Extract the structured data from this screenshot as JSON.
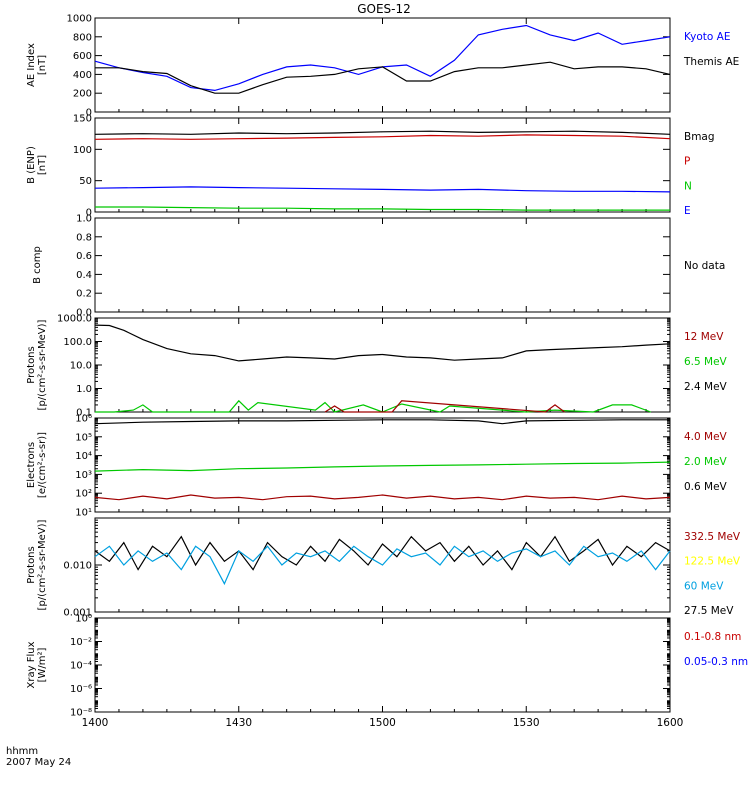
{
  "title": "GOES-12",
  "footer": {
    "line1": "hhmm",
    "line2": "2007 May 24"
  },
  "colors": {
    "black": "#000000",
    "blue": "#0000ff",
    "red": "#c80000",
    "green": "#00c800",
    "cyan": "#00a0e0",
    "yellow": "#ffff00",
    "darkred": "#a00000"
  },
  "chart_data": [
    {
      "id": "ae",
      "type": "line",
      "scale": "linear",
      "ylabel": [
        "AE Index",
        "[nT]"
      ],
      "ylim": [
        0,
        1000
      ],
      "ticks": [
        "0",
        "200",
        "400",
        "600",
        "800",
        "1000"
      ],
      "tick_values": [
        0,
        200,
        400,
        600,
        800,
        1000
      ],
      "legend": [
        {
          "label": "Kyoto AE",
          "color": "blue"
        },
        {
          "label": "Themis AE",
          "color": "black"
        }
      ],
      "series": [
        {
          "name": "Kyoto AE",
          "color": "blue",
          "x": [
            0,
            5,
            10,
            15,
            20,
            25,
            30,
            35,
            40,
            45,
            50,
            55,
            60,
            65,
            70,
            75,
            80,
            85,
            90,
            95,
            100,
            105,
            110,
            115,
            120
          ],
          "y": [
            540,
            470,
            420,
            380,
            260,
            230,
            300,
            400,
            480,
            500,
            470,
            400,
            480,
            500,
            380,
            550,
            820,
            880,
            920,
            820,
            760,
            840,
            720,
            760,
            800
          ]
        },
        {
          "name": "Themis AE",
          "color": "black",
          "x": [
            0,
            5,
            10,
            15,
            20,
            25,
            30,
            35,
            40,
            45,
            50,
            55,
            60,
            65,
            70,
            75,
            80,
            85,
            90,
            95,
            100,
            105,
            110,
            115,
            120
          ],
          "y": [
            470,
            470,
            430,
            410,
            280,
            200,
            200,
            290,
            370,
            380,
            400,
            460,
            480,
            330,
            330,
            430,
            470,
            470,
            500,
            530,
            460,
            480,
            480,
            460,
            400
          ]
        }
      ]
    },
    {
      "id": "b",
      "type": "line",
      "scale": "linear",
      "ylabel": [
        "B (ENP)",
        "[nT]"
      ],
      "ylim": [
        0,
        150
      ],
      "ticks": [
        "0",
        "50",
        "100",
        "150"
      ],
      "tick_values": [
        0,
        50,
        100,
        150
      ],
      "legend": [
        {
          "label": "Bmag",
          "color": "black"
        },
        {
          "label": "P",
          "color": "red"
        },
        {
          "label": "N",
          "color": "green"
        },
        {
          "label": "E",
          "color": "blue"
        }
      ],
      "series": [
        {
          "name": "Bmag",
          "color": "black",
          "x": [
            0,
            10,
            20,
            30,
            40,
            50,
            60,
            70,
            80,
            90,
            100,
            110,
            120
          ],
          "y": [
            124,
            125,
            124,
            126,
            125,
            126,
            128,
            129,
            127,
            128,
            129,
            127,
            124
          ]
        },
        {
          "name": "P",
          "color": "red",
          "x": [
            0,
            10,
            20,
            30,
            40,
            50,
            60,
            70,
            80,
            90,
            100,
            110,
            120
          ],
          "y": [
            116,
            117,
            116,
            117,
            118,
            119,
            120,
            122,
            121,
            123,
            122,
            121,
            117
          ]
        },
        {
          "name": "N",
          "color": "green",
          "x": [
            0,
            10,
            20,
            30,
            40,
            50,
            60,
            70,
            80,
            90,
            100,
            110,
            120
          ],
          "y": [
            8,
            8,
            7,
            6,
            6,
            5,
            5,
            4,
            4,
            3,
            3,
            3,
            3
          ]
        },
        {
          "name": "E",
          "color": "blue",
          "x": [
            0,
            10,
            20,
            30,
            40,
            50,
            60,
            70,
            80,
            90,
            100,
            110,
            120
          ],
          "y": [
            38,
            39,
            40,
            39,
            38,
            37,
            36,
            35,
            36,
            34,
            33,
            33,
            32
          ]
        }
      ]
    },
    {
      "id": "bcomp",
      "type": "line",
      "scale": "linear",
      "ylabel": [
        "B comp"
      ],
      "ylim": [
        0,
        1
      ],
      "ticks": [
        "0.0",
        "0.2",
        "0.4",
        "0.6",
        "0.8",
        "1.0"
      ],
      "tick_values": [
        0,
        0.2,
        0.4,
        0.6,
        0.8,
        1.0
      ],
      "legend": [
        {
          "label": "No data",
          "color": "black"
        }
      ],
      "series": []
    },
    {
      "id": "protons1",
      "type": "line",
      "scale": "log",
      "ylabel": [
        "Protons",
        "[p/(cm²-s-sr-MeV)]"
      ],
      "ylim": [
        0.1,
        1000
      ],
      "ticks": [
        "0.1",
        "1.0",
        "10.0",
        "100.0",
        "1000.0"
      ],
      "tick_values": [
        0.1,
        1,
        10,
        100,
        1000
      ],
      "legend": [
        {
          "label": "12 MeV",
          "color": "darkred"
        },
        {
          "label": "6.5 MeV",
          "color": "green"
        },
        {
          "label": "2.4 MeV",
          "color": "black"
        }
      ],
      "series": [
        {
          "name": "2.4 MeV",
          "color": "black",
          "x": [
            0,
            3,
            6,
            10,
            15,
            20,
            25,
            30,
            35,
            40,
            45,
            50,
            55,
            60,
            65,
            70,
            75,
            80,
            85,
            90,
            95,
            100,
            105,
            110,
            115,
            120
          ],
          "y": [
            500,
            480,
            300,
            120,
            50,
            30,
            25,
            15,
            18,
            22,
            20,
            18,
            25,
            28,
            22,
            20,
            16,
            18,
            20,
            40,
            45,
            50,
            55,
            60,
            70,
            80
          ]
        },
        {
          "name": "6.5 MeV",
          "color": "green",
          "x": [
            0,
            4,
            8,
            10,
            12,
            16,
            20,
            28,
            30,
            32,
            34,
            46,
            48,
            50,
            56,
            60,
            64,
            72,
            74,
            90,
            96,
            104,
            108,
            112,
            116
          ],
          "y": [
            0.1,
            0.1,
            0.12,
            0.2,
            0.1,
            0.1,
            0.1,
            0.1,
            0.3,
            0.12,
            0.25,
            0.12,
            0.25,
            0.1,
            0.2,
            0.1,
            0.22,
            0.1,
            0.18,
            0.1,
            0.12,
            0.1,
            0.2,
            0.2,
            0.1
          ]
        },
        {
          "name": "12 MeV",
          "color": "darkred",
          "x": [
            48,
            50,
            52,
            62,
            64,
            94,
            96,
            98
          ],
          "y": [
            0.1,
            0.18,
            0.1,
            0.1,
            0.3,
            0.1,
            0.2,
            0.1
          ]
        }
      ]
    },
    {
      "id": "electrons",
      "type": "line",
      "scale": "log",
      "ylabel": [
        "Electrons",
        "[e/(cm²-s-sr)]"
      ],
      "ylim": [
        10,
        1000000
      ],
      "ticks": [
        "10¹",
        "10²",
        "10³",
        "10⁴",
        "10⁵",
        "10⁶"
      ],
      "tick_values": [
        10,
        100,
        1000,
        10000,
        100000,
        1000000
      ],
      "legend": [
        {
          "label": "4.0 MeV",
          "color": "darkred"
        },
        {
          "label": "2.0 MeV",
          "color": "green"
        },
        {
          "label": "0.6 MeV",
          "color": "black"
        }
      ],
      "series": [
        {
          "name": "0.6 MeV",
          "color": "black",
          "x": [
            0,
            10,
            20,
            30,
            40,
            50,
            60,
            70,
            80,
            85,
            90,
            100,
            110,
            120
          ],
          "y": [
            500000,
            600000,
            650000,
            700000,
            700000,
            750000,
            800000,
            800000,
            700000,
            500000,
            700000,
            750000,
            800000,
            800000
          ]
        },
        {
          "name": "2.0 MeV",
          "color": "green",
          "x": [
            0,
            10,
            20,
            30,
            40,
            50,
            60,
            70,
            80,
            90,
            100,
            110,
            120
          ],
          "y": [
            1500,
            1800,
            1600,
            2000,
            2200,
            2500,
            2800,
            3000,
            3200,
            3500,
            3800,
            4000,
            4500
          ]
        },
        {
          "name": "4.0 MeV",
          "color": "darkred",
          "x": [
            0,
            5,
            10,
            15,
            20,
            25,
            30,
            35,
            40,
            45,
            50,
            55,
            60,
            65,
            70,
            75,
            80,
            85,
            90,
            95,
            100,
            105,
            110,
            115,
            120
          ],
          "y": [
            60,
            45,
            70,
            50,
            80,
            55,
            60,
            45,
            65,
            70,
            50,
            60,
            80,
            55,
            70,
            50,
            60,
            45,
            70,
            55,
            60,
            45,
            70,
            50,
            60
          ]
        }
      ]
    },
    {
      "id": "protons2",
      "type": "line",
      "scale": "log",
      "ylabel": [
        "Protons",
        "[p/(cm²-s-sr-MeV)]"
      ],
      "ylim": [
        0.001,
        0.1
      ],
      "ticks": [
        "0.001",
        "0.010"
      ],
      "tick_values": [
        0.001,
        0.01
      ],
      "legend": [
        {
          "label": "332.5 MeV",
          "color": "darkred"
        },
        {
          "label": "122.5 MeV",
          "color": "yellow"
        },
        {
          "label": "60 MeV",
          "color": "cyan"
        },
        {
          "label": "27.5 MeV",
          "color": "black"
        }
      ],
      "series": [
        {
          "name": "27.5 MeV",
          "color": "black",
          "x": [
            0,
            3,
            6,
            9,
            12,
            15,
            18,
            21,
            24,
            27,
            30,
            33,
            36,
            39,
            42,
            45,
            48,
            51,
            54,
            57,
            60,
            63,
            66,
            69,
            72,
            75,
            78,
            81,
            84,
            87,
            90,
            93,
            96,
            99,
            102,
            105,
            108,
            111,
            114,
            117,
            120
          ],
          "y": [
            0.02,
            0.012,
            0.03,
            0.008,
            0.025,
            0.015,
            0.04,
            0.01,
            0.03,
            0.012,
            0.02,
            0.008,
            0.03,
            0.015,
            0.01,
            0.025,
            0.012,
            0.035,
            0.02,
            0.01,
            0.028,
            0.015,
            0.04,
            0.02,
            0.03,
            0.012,
            0.025,
            0.01,
            0.02,
            0.008,
            0.03,
            0.015,
            0.04,
            0.012,
            0.02,
            0.035,
            0.01,
            0.025,
            0.015,
            0.03,
            0.02
          ]
        },
        {
          "name": "60 MeV",
          "color": "cyan",
          "x": [
            0,
            3,
            6,
            9,
            12,
            15,
            18,
            21,
            24,
            27,
            30,
            33,
            36,
            39,
            42,
            45,
            48,
            51,
            54,
            57,
            60,
            63,
            66,
            69,
            72,
            75,
            78,
            81,
            84,
            87,
            90,
            93,
            96,
            99,
            102,
            105,
            108,
            111,
            114,
            117,
            120
          ],
          "y": [
            0.015,
            0.025,
            0.01,
            0.02,
            0.012,
            0.018,
            0.008,
            0.025,
            0.015,
            0.004,
            0.02,
            0.012,
            0.025,
            0.01,
            0.018,
            0.015,
            0.02,
            0.012,
            0.025,
            0.015,
            0.01,
            0.022,
            0.015,
            0.018,
            0.01,
            0.025,
            0.015,
            0.02,
            0.012,
            0.018,
            0.022,
            0.015,
            0.02,
            0.01,
            0.025,
            0.015,
            0.018,
            0.012,
            0.02,
            0.008,
            0.02
          ]
        }
      ]
    },
    {
      "id": "xray",
      "type": "line",
      "scale": "log",
      "ylabel": [
        "Xray Flux",
        "[W/m²]"
      ],
      "ylim": [
        1e-08,
        1
      ],
      "ticks": [
        "10⁻⁸",
        "10⁻⁶",
        "10⁻⁴",
        "10⁻²",
        "10⁰"
      ],
      "tick_values": [
        1e-08,
        1e-06,
        0.0001,
        0.01,
        1
      ],
      "legend": [
        {
          "label": "0.1-0.8 nm",
          "color": "red"
        },
        {
          "label": "0.05-0.3 nm",
          "color": "blue"
        }
      ],
      "series": []
    }
  ],
  "xaxis": {
    "ticks": [
      "1400",
      "1430",
      "1500",
      "1530",
      "1600"
    ],
    "values": [
      0,
      30,
      60,
      90,
      120
    ],
    "range": [
      0,
      120
    ]
  }
}
